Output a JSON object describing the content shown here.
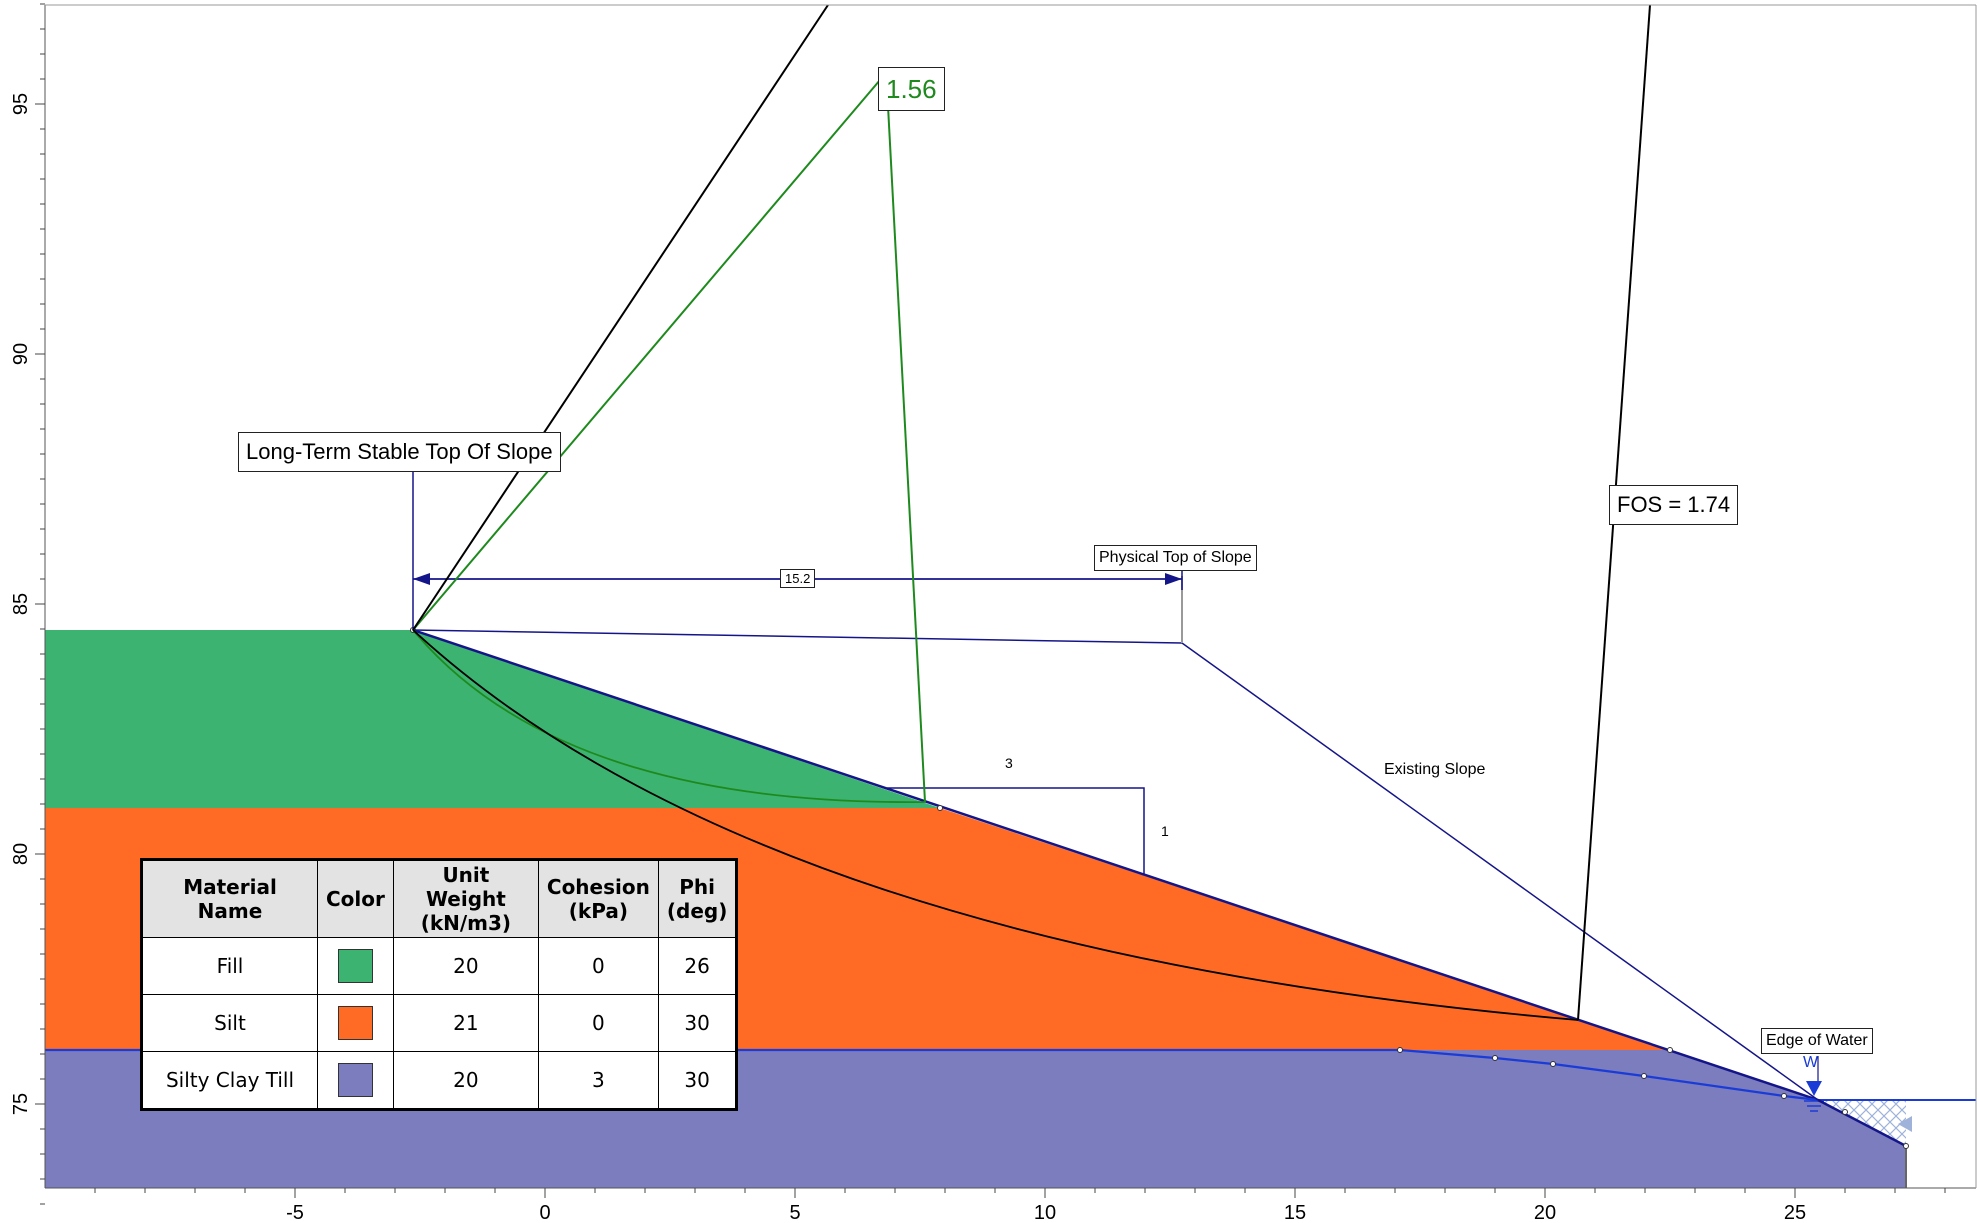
{
  "colors": {
    "fill": "#3cb371",
    "silt": "#ff6a24",
    "till": "#7b7dbf",
    "green_surface": "#1e8a1e",
    "navy": "#15158a",
    "water": "#1a3bd6"
  },
  "axes": {
    "x_ticks": [
      "-5",
      "0",
      "5",
      "10",
      "15",
      "20",
      "25"
    ],
    "y_ticks": [
      "75",
      "80",
      "85",
      "90",
      "95"
    ]
  },
  "labels": {
    "long_term_top": "Long-Term Stable Top Of Slope",
    "physical_top": "Physical Top of Slope",
    "fos_black": "FOS = 1.74",
    "fos_green": "1.56",
    "existing_slope": "Existing Slope",
    "edge_of_water": "Edge of Water",
    "dimension": "15.2",
    "slope_run": "3",
    "slope_rise": "1",
    "water_symbol": "W"
  },
  "legend": {
    "headers": [
      "Material Name",
      "Color",
      "Unit Weight (kN/m3)",
      "Cohesion (kPa)",
      "Phi (deg)"
    ],
    "rows": [
      {
        "name": "Fill",
        "color": "#3cb371",
        "unit_weight": "20",
        "cohesion": "0",
        "phi": "26"
      },
      {
        "name": "Silt",
        "color": "#ff6a24",
        "unit_weight": "21",
        "cohesion": "0",
        "phi": "30"
      },
      {
        "name": "Silty Clay Till",
        "color": "#7b7dbf",
        "unit_weight": "20",
        "cohesion": "3",
        "phi": "30"
      }
    ]
  }
}
